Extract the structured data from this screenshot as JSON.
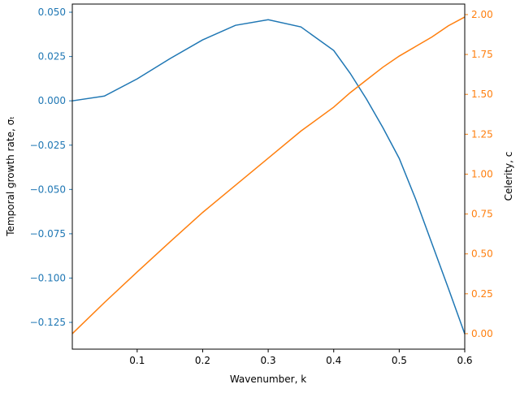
{
  "chart_data": {
    "type": "line",
    "x_label": "Wavenumber, k",
    "y_label": "Temporal growth rate, σₜ",
    "y2_label": "Celerity, c",
    "x": [
      0.001,
      0.05,
      0.1,
      0.15,
      0.2,
      0.25,
      0.3,
      0.35,
      0.4,
      0.425,
      0.45,
      0.475,
      0.5,
      0.525,
      0.55,
      0.575,
      0.6
    ],
    "series": [
      {
        "color": "#1f77b4",
        "axis": "y",
        "values": [
          0.0,
          0.0027,
          0.0124,
          0.0238,
          0.0344,
          0.0426,
          0.0458,
          0.0417,
          0.0284,
          0.0156,
          0.001,
          -0.0151,
          -0.0325,
          -0.0554,
          -0.0806,
          -0.1058,
          -0.1315
        ]
      },
      {
        "color": "#ff7f0e",
        "axis": "y2",
        "values": [
          0.0,
          0.195,
          0.387,
          0.575,
          0.76,
          0.93,
          1.1,
          1.27,
          1.42,
          1.51,
          1.59,
          1.67,
          1.74,
          1.8,
          1.86,
          1.93,
          1.985
        ]
      }
    ],
    "xlim": [
      0.001,
      0.6
    ],
    "xticks": [
      0.1,
      0.2,
      0.3,
      0.4,
      0.5,
      0.6
    ],
    "ylim": [
      -0.1401,
      0.0546
    ],
    "yticks": [
      {
        "value": 0.05,
        "label": "0.050"
      },
      {
        "value": 0.025,
        "label": "0.025"
      },
      {
        "value": 0,
        "label": "0.000"
      },
      {
        "value": -0.025,
        "label": "−0.025"
      },
      {
        "value": -0.05,
        "label": "−0.050"
      },
      {
        "value": -0.075,
        "label": "−0.075"
      },
      {
        "value": -0.1,
        "label": "−0.100"
      },
      {
        "value": -0.125,
        "label": "−0.125"
      }
    ],
    "y2lim": [
      -0.097,
      2.066
    ],
    "y2ticks": [
      {
        "value": 2,
        "label": "2.00"
      },
      {
        "value": 1.75,
        "label": "1.75"
      },
      {
        "value": 1.5,
        "label": "1.50"
      },
      {
        "value": 1.25,
        "label": "1.25"
      },
      {
        "value": 1,
        "label": "1.00"
      },
      {
        "value": 0.75,
        "label": "0.75"
      },
      {
        "value": 0.5,
        "label": "0.50"
      },
      {
        "value": 0.25,
        "label": "0.25"
      },
      {
        "value": 0,
        "label": "0.00"
      }
    ],
    "grid": false
  }
}
